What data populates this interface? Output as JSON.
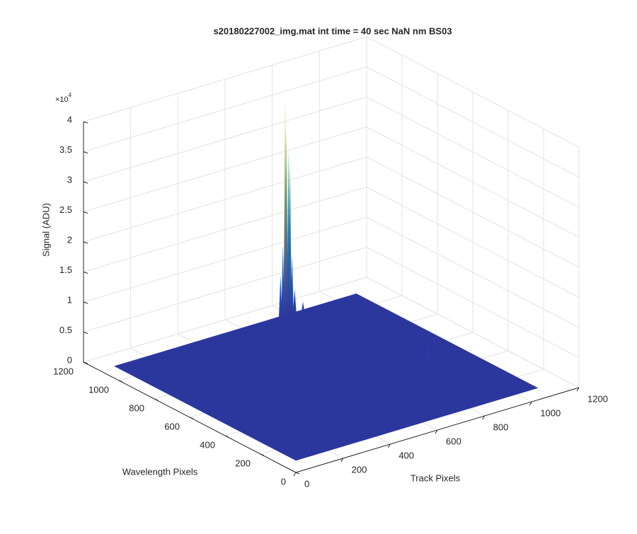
{
  "chart_data": {
    "type": "surface3d",
    "title": "s20180227002_img.mat int time = 40 sec  NaN nm BS03",
    "x_label": "Track Pixels",
    "y_label": "Wavelength Pixels",
    "z_label": "Signal (ADU)",
    "z_multiplier": {
      "base": "×10",
      "exponent": "4"
    },
    "xlim": [
      0,
      1200
    ],
    "ylim": [
      0,
      1200
    ],
    "zlim": [
      0,
      40000
    ],
    "xticks": [
      0,
      200,
      400,
      600,
      800,
      1000,
      1200
    ],
    "yticks": [
      0,
      200,
      400,
      600,
      800,
      1000,
      1200
    ],
    "zticks": [
      {
        "value": 0,
        "label": "0"
      },
      {
        "value": 5000,
        "label": "0.5"
      },
      {
        "value": 10000,
        "label": "1"
      },
      {
        "value": 15000,
        "label": "1.5"
      },
      {
        "value": 20000,
        "label": "2"
      },
      {
        "value": 25000,
        "label": "2.5"
      },
      {
        "value": 30000,
        "label": "3"
      },
      {
        "value": 35000,
        "label": "3.5"
      },
      {
        "value": 40000,
        "label": "4"
      }
    ],
    "grid": true,
    "data_x_range": [
      1,
      1024
    ],
    "data_y_range": [
      1,
      1024
    ],
    "base_level": 2000,
    "colormap": [
      "#352a87",
      "#0f5cdd",
      "#1481d6",
      "#06a7c6",
      "#7dbf7b",
      "#f9fb0e"
    ],
    "peaks": {
      "x": [
        700,
        710,
        715,
        720,
        725,
        730,
        735,
        740,
        745,
        760,
        780,
        776,
        868
      ],
      "y": [
        1020,
        1020,
        1015,
        1020,
        1020,
        1015,
        1020,
        1020,
        1015,
        1020,
        1000,
        826,
        409
      ],
      "z": [
        9000,
        14000,
        25000,
        39000,
        33000,
        30000,
        24000,
        28000,
        12000,
        6000,
        4000,
        3000,
        4500
      ]
    }
  }
}
